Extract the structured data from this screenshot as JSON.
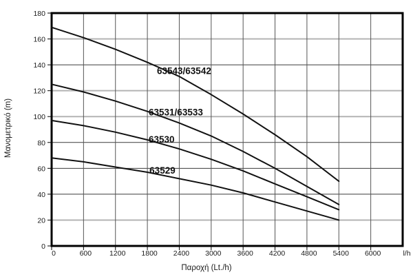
{
  "chart_data": {
    "type": "line",
    "title": "",
    "xlabel": "Παροχή (Lt./h)",
    "ylabel": "Μανομετρικό  (m)",
    "x_unit_label": "l/h",
    "xlim": [
      0,
      6600
    ],
    "ylim": [
      0,
      180
    ],
    "x_ticks": [
      0,
      600,
      1200,
      1800,
      2400,
      3000,
      3600,
      4200,
      4800,
      5400,
      6000
    ],
    "y_ticks": [
      0,
      20,
      40,
      60,
      80,
      100,
      120,
      140,
      160,
      180
    ],
    "grid": "on",
    "legend_position": "inline-labels",
    "light_y_gridlines": [
      20,
      100,
      120,
      160
    ],
    "colors": {
      "curve": "#111111",
      "grid_dark": "#3a3a3a",
      "grid_light": "#b3b3b3",
      "grid_vertical": "#555555",
      "border": "#000000"
    },
    "x": [
      0,
      600,
      1200,
      1800,
      2400,
      3000,
      3600,
      4200,
      4800,
      5400
    ],
    "series": [
      {
        "name": "63543/63542",
        "values": [
          169,
          161,
          152,
          142,
          131,
          117,
          102,
          86,
          69,
          50
        ],
        "label_at": [
          1980,
          133
        ]
      },
      {
        "name": "63531/63533",
        "values": [
          125,
          119,
          112,
          104,
          95,
          85,
          73,
          60,
          46,
          32
        ],
        "label_at": [
          1825,
          101
        ]
      },
      {
        "name": "63530",
        "values": [
          97,
          93,
          88,
          82,
          75,
          67,
          58,
          48,
          38,
          28
        ],
        "label_at": [
          1825,
          80
        ]
      },
      {
        "name": "63529",
        "values": [
          68,
          65,
          61,
          57,
          52,
          47,
          41,
          34,
          27,
          20
        ],
        "label_at": [
          1840,
          56
        ]
      }
    ]
  }
}
